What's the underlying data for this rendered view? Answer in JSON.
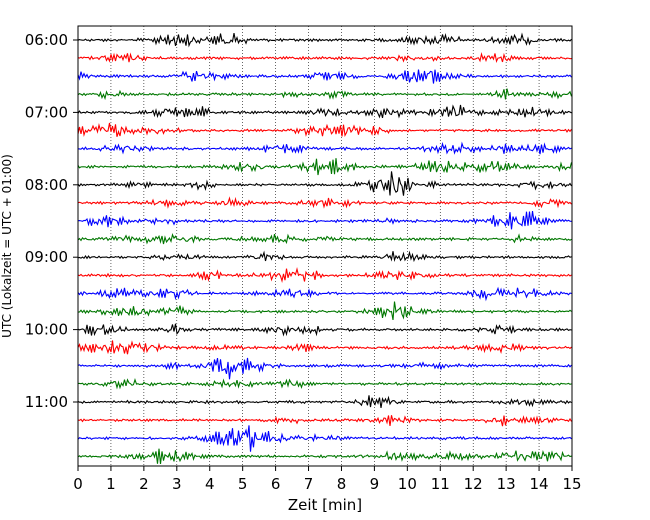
{
  "chart_data": {
    "type": "line",
    "title": "",
    "xlabel": "Zeit  [min]",
    "ylabel": "UTC (Lokalzeit = UTC + 01:00)",
    "xlim": [
      0,
      15
    ],
    "x_ticks": [
      0,
      1,
      2,
      3,
      4,
      5,
      6,
      7,
      8,
      9,
      10,
      11,
      12,
      13,
      14,
      15
    ],
    "x_tick_labels": [
      "0",
      "1",
      "2",
      "3",
      "4",
      "5",
      "6",
      "7",
      "8",
      "9",
      "10",
      "11",
      "12",
      "13",
      "14",
      "15"
    ],
    "y_tick_labels": [
      "06:00",
      "07:00",
      "08:00",
      "09:00",
      "10:00",
      "11:00"
    ],
    "y_tick_rows": [
      0,
      4,
      8,
      12,
      16,
      20
    ],
    "grid": "vertical dotted",
    "trace_colors": [
      "#000000",
      "#ff0000",
      "#0000ff",
      "#007700"
    ],
    "rows": [
      {
        "start": "06:00",
        "color": "#000000"
      },
      {
        "start": "06:15",
        "color": "#ff0000"
      },
      {
        "start": "06:30",
        "color": "#0000ff"
      },
      {
        "start": "06:45",
        "color": "#007700"
      },
      {
        "start": "07:00",
        "color": "#000000"
      },
      {
        "start": "07:15",
        "color": "#ff0000"
      },
      {
        "start": "07:30",
        "color": "#0000ff"
      },
      {
        "start": "07:45",
        "color": "#007700"
      },
      {
        "start": "08:00",
        "color": "#000000"
      },
      {
        "start": "08:15",
        "color": "#ff0000"
      },
      {
        "start": "08:30",
        "color": "#0000ff"
      },
      {
        "start": "08:45",
        "color": "#007700"
      },
      {
        "start": "09:00",
        "color": "#000000"
      },
      {
        "start": "09:15",
        "color": "#ff0000"
      },
      {
        "start": "09:30",
        "color": "#0000ff"
      },
      {
        "start": "09:45",
        "color": "#007700"
      },
      {
        "start": "10:00",
        "color": "#000000"
      },
      {
        "start": "10:15",
        "color": "#ff0000"
      },
      {
        "start": "10:30",
        "color": "#0000ff"
      },
      {
        "start": "10:45",
        "color": "#007700"
      },
      {
        "start": "11:00",
        "color": "#000000"
      },
      {
        "start": "11:15",
        "color": "#ff0000"
      },
      {
        "start": "11:30",
        "color": "#0000ff"
      },
      {
        "start": "11:45",
        "color": "#007700"
      }
    ]
  }
}
